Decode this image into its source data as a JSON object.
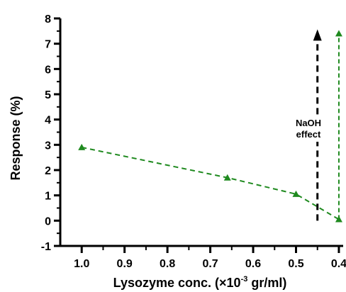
{
  "chart_data": {
    "type": "scatter",
    "xlabel_main": "Lysozyme conc. (×10",
    "xlabel_exp": "-3",
    "xlabel_tail": " gr/ml)",
    "ylabel": "Response (%)",
    "xlim": [
      1.05,
      0.39
    ],
    "ylim": [
      -1,
      8
    ],
    "x_ticks": [
      "1.0",
      "0.9",
      "0.8",
      "0.7",
      "0.6",
      "0.5",
      "0.4"
    ],
    "y_ticks": [
      "-1",
      "0",
      "1",
      "2",
      "3",
      "4",
      "5",
      "6",
      "7",
      "8"
    ],
    "series": [
      {
        "color": "#1f8a1f",
        "marker": "triangle",
        "line_style": "dashed",
        "x": [
          1.0,
          0.66,
          0.5,
          0.4
        ],
        "y": [
          2.9,
          1.7,
          1.05,
          0.05
        ]
      }
    ],
    "vertical_arrows": [
      {
        "x": 0.4,
        "y_from": 0.05,
        "y_to": 7.4,
        "color": "#1f8a1f",
        "style": "dashed",
        "head": "triangle-marker"
      },
      {
        "x": 0.45,
        "y_from": 0.0,
        "y_to": 7.4,
        "color": "#000000",
        "style": "dashed",
        "head": "arrow"
      }
    ],
    "annotation": {
      "line1": "NaOH",
      "line2": "effect",
      "x": 0.45,
      "y": 3.6
    },
    "grid": false
  }
}
